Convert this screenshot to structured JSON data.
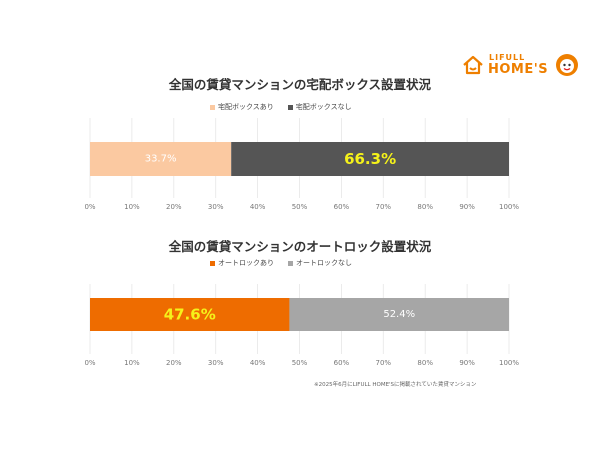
{
  "logo": {
    "small_text": "LIFULL",
    "big_text": "HOME'S"
  },
  "colors": {
    "light_orange": "#fbc9a1",
    "dark_gray": "#555555",
    "orange": "#ee6c00",
    "gray": "#a6a6a6",
    "yellow": "#f5f21a",
    "white": "#ffffff"
  },
  "chart_data": [
    {
      "type": "bar",
      "orientation": "horizontal",
      "stacked": true,
      "title": "全国の賃貸マンションの宅配ボックス設置状況",
      "legend": {
        "position": "top"
      },
      "xlim": [
        0,
        100
      ],
      "x_ticks": [
        "0%",
        "10%",
        "20%",
        "30%",
        "40%",
        "50%",
        "60%",
        "70%",
        "80%",
        "90%",
        "100%"
      ],
      "series": [
        {
          "name": "宅配ボックスあり",
          "value": 33.7,
          "label": "33.7%",
          "color": "#fbc9a1",
          "label_color": "#ffffff"
        },
        {
          "name": "宅配ボックスなし",
          "value": 66.3,
          "label": "66.3%",
          "color": "#555555",
          "label_color": "#f5f21a"
        }
      ]
    },
    {
      "type": "bar",
      "orientation": "horizontal",
      "stacked": true,
      "title": "全国の賃貸マンションのオートロック設置状況",
      "legend": {
        "position": "top"
      },
      "xlim": [
        0,
        100
      ],
      "x_ticks": [
        "0%",
        "10%",
        "20%",
        "30%",
        "40%",
        "50%",
        "60%",
        "70%",
        "80%",
        "90%",
        "100%"
      ],
      "series": [
        {
          "name": "オートロックあり",
          "value": 47.6,
          "label": "47.6%",
          "color": "#ee6c00",
          "label_color": "#f5f21a"
        },
        {
          "name": "オートロックなし",
          "value": 52.4,
          "label": "52.4%",
          "color": "#a6a6a6",
          "label_color": "#ffffff"
        }
      ]
    }
  ],
  "footnote": "※2025年6月にLIFULL HOME'Sに掲載されていた賃貸マンション"
}
